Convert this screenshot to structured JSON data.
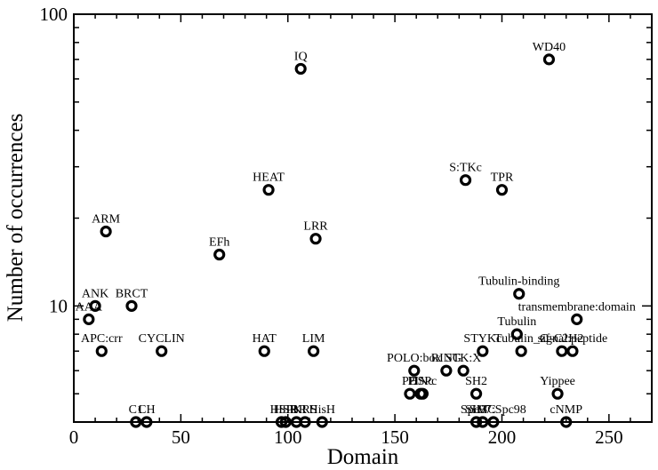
{
  "chart_data": {
    "type": "scatter",
    "title": "",
    "xlabel": "Domain",
    "ylabel": "Number of occurrences",
    "xlim": [
      0,
      270
    ],
    "ylim": [
      4,
      100
    ],
    "yscale": "log",
    "xticks": [
      0,
      50,
      100,
      150,
      200,
      250
    ],
    "yticks": [
      10,
      100
    ],
    "grid": false,
    "legend": "none",
    "marker": "open-circle",
    "color": "#000000",
    "points": [
      {
        "label": "AAA",
        "x": 7,
        "y": 9
      },
      {
        "label": "ANK",
        "x": 10,
        "y": 10
      },
      {
        "label": "APC:crr",
        "x": 13,
        "y": 7
      },
      {
        "label": "ARM",
        "x": 15,
        "y": 18
      },
      {
        "label": "BRCT",
        "x": 27,
        "y": 10
      },
      {
        "label": "C1",
        "x": 29,
        "y": 4
      },
      {
        "label": "CH",
        "x": 34,
        "y": 4
      },
      {
        "label": "CYCLIN",
        "x": 41,
        "y": 7
      },
      {
        "label": "EFh",
        "x": 68,
        "y": 15
      },
      {
        "label": "HAT",
        "x": 89,
        "y": 7
      },
      {
        "label": "HEAT",
        "x": 91,
        "y": 25
      },
      {
        "label": "HSP",
        "x": 97,
        "y": 4
      },
      {
        "label": "HSR",
        "x": 99,
        "y": 4
      },
      {
        "label": "IBR",
        "x": 104,
        "y": 4
      },
      {
        "label": "IQ",
        "x": 106,
        "y": 65
      },
      {
        "label": "KRS",
        "x": 108,
        "y": 4
      },
      {
        "label": "LIM",
        "x": 112,
        "y": 7
      },
      {
        "label": "LRR",
        "x": 113,
        "y": 17
      },
      {
        "label": "HisH",
        "x": 116,
        "y": 4
      },
      {
        "label": "PH",
        "x": 157,
        "y": 5
      },
      {
        "label": "POLO:box",
        "x": 159,
        "y": 6
      },
      {
        "label": "PINc",
        "x": 162,
        "y": 5
      },
      {
        "label": "RING",
        "x": 174,
        "y": 6
      },
      {
        "label": "DSPc",
        "x": 163,
        "y": 5
      },
      {
        "label": "S:TKc",
        "x": 183,
        "y": 27
      },
      {
        "label": "STK:X",
        "x": 182,
        "y": 6
      },
      {
        "label": "SH2",
        "x": 188,
        "y": 5
      },
      {
        "label": "SH3",
        "x": 188,
        "y": 4
      },
      {
        "label": "SMC",
        "x": 191,
        "y": 4
      },
      {
        "label": "Spc97:Spc98",
        "x": 196,
        "y": 4
      },
      {
        "label": "STYKc",
        "x": 191,
        "y": 7
      },
      {
        "label": "TPR",
        "x": 200,
        "y": 25
      },
      {
        "label": "Tubulin",
        "x": 207,
        "y": 8
      },
      {
        "label": "Tubulin-binding",
        "x": 208,
        "y": 11
      },
      {
        "label": "Tubulin_C",
        "x": 209,
        "y": 7
      },
      {
        "label": "WD40",
        "x": 222,
        "y": 70
      },
      {
        "label": "Yippee",
        "x": 226,
        "y": 5
      },
      {
        "label": "cNMP",
        "x": 230,
        "y": 4
      },
      {
        "label": "transmembrane:domain",
        "x": 235,
        "y": 9
      },
      {
        "label": "zf-C2H2",
        "x": 228,
        "y": 7
      },
      {
        "label": "signal:peptide",
        "x": 233,
        "y": 7
      }
    ]
  }
}
